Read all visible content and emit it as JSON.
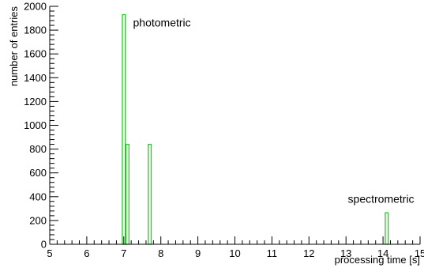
{
  "chart_data": {
    "type": "bar",
    "subtype": "histogram",
    "title": "",
    "xlabel": "processing time [s]",
    "ylabel": "number of entries",
    "xlim": [
      5,
      15
    ],
    "ylim": [
      0,
      2000
    ],
    "x_ticks": [
      5,
      6,
      7,
      8,
      9,
      10,
      11,
      12,
      13,
      14,
      15
    ],
    "y_ticks": [
      0,
      200,
      400,
      600,
      800,
      1000,
      1200,
      1400,
      1600,
      1800,
      2000
    ],
    "bin_width": 0.1,
    "grid": false,
    "legend": "none",
    "bar_color": "#22cc22",
    "series": [
      {
        "bins": [
          {
            "x0": 6.95,
            "x1": 7.05,
            "value": 1930
          },
          {
            "x0": 7.05,
            "x1": 7.15,
            "value": 840
          },
          {
            "x0": 7.65,
            "x1": 7.75,
            "value": 840
          },
          {
            "x0": 14.05,
            "x1": 14.15,
            "value": 265
          }
        ]
      }
    ],
    "annotations": [
      {
        "text": "photometric",
        "x": 7.25,
        "y": 1830
      },
      {
        "text": "spectrometric",
        "x": 13.05,
        "y": 350
      }
    ]
  }
}
